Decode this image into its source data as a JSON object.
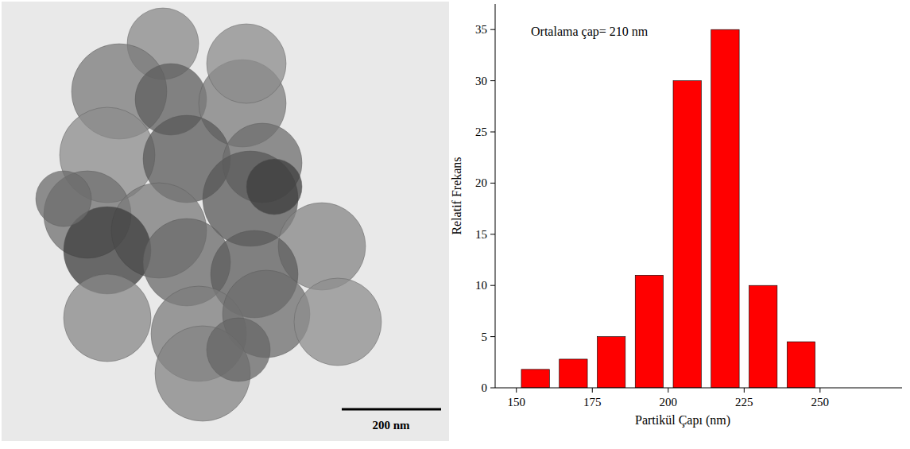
{
  "image": {
    "scale_bar": "200 nm"
  },
  "chart_data": {
    "type": "histogram",
    "annotation": "Ortalama çap= 210 nm",
    "x_label": "Partikül Çapı (nm)",
    "y_label": "Relatif Frekans",
    "bins": [
      150,
      162.5,
      175,
      187.5,
      200,
      212.5,
      225,
      237.5,
      250
    ],
    "values": [
      1.8,
      2.8,
      5,
      11,
      30,
      35,
      10,
      4.5
    ],
    "color": "#ff0000",
    "xlim": [
      143,
      277
    ],
    "xticks": [
      150,
      175,
      200,
      225,
      250
    ],
    "ylim": [
      0,
      37.5
    ],
    "yticks": [
      0,
      5,
      10,
      15,
      20,
      25,
      30,
      35
    ],
    "grid": false
  }
}
